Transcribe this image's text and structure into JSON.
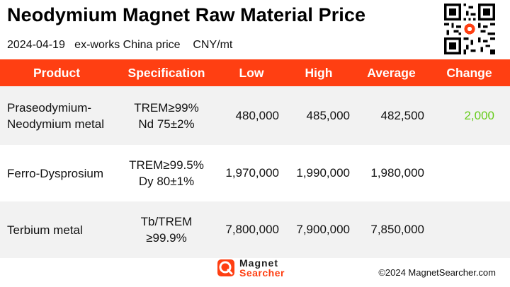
{
  "title": "Neodymium Magnet Raw Material Price",
  "subtitle": "2024-04-19   ex-works China price    CNY/mt",
  "colors": {
    "header_bg": "#ff3f12",
    "change_positive": "#66cc1a",
    "brand_orange": "#ff3f12"
  },
  "table": {
    "headers": [
      "Product",
      "Specification",
      "Low",
      "High",
      "Average",
      "Change"
    ],
    "rows": [
      {
        "product_line1": "Praseodymium-",
        "product_line2": "Neodymium metal",
        "spec_line1": "TREM≥99%",
        "spec_line2": "Nd 75±2%",
        "low": "480,000",
        "high": "485,000",
        "average": "482,500",
        "change": "2,000"
      },
      {
        "product_line1": "Ferro-Dysprosium",
        "product_line2": "",
        "spec_line1": "TREM≥99.5%",
        "spec_line2": "Dy 80±1%",
        "low": "1,970,000",
        "high": "1,990,000",
        "average": "1,980,000",
        "change": ""
      },
      {
        "product_line1": "Terbium metal",
        "product_line2": "",
        "spec_line1": "Tb/TREM",
        "spec_line2": "≥99.9%",
        "low": "7,800,000",
        "high": "7,900,000",
        "average": "7,850,000",
        "change": ""
      }
    ]
  },
  "footer": {
    "logo_line1": "Magnet",
    "logo_line2": "Searcher",
    "copyright": "©2024 MagnetSearcher.com"
  },
  "icons": {
    "qr": "qr-code-icon",
    "logo": "magnet-searcher-logo-icon"
  }
}
